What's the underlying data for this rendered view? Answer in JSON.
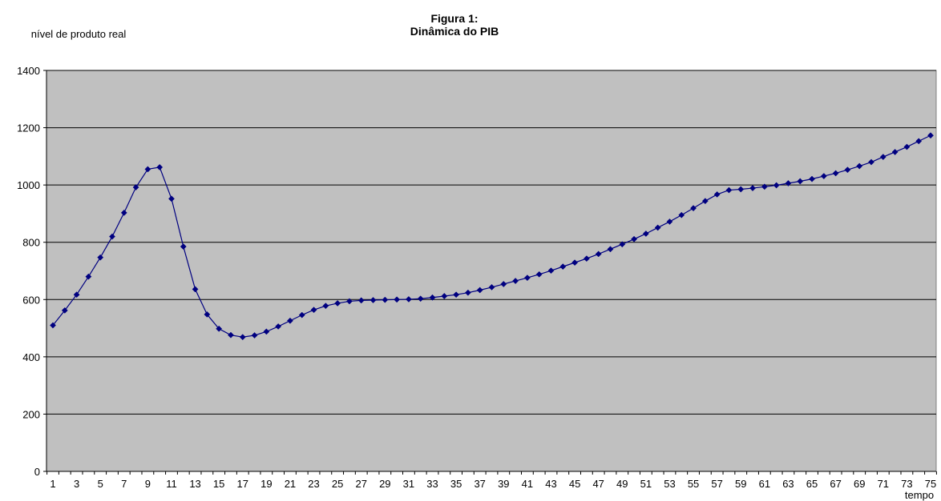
{
  "chart_data": {
    "type": "line",
    "title": "Figura 1:",
    "subtitle": "Dinâmica do PIB",
    "xlabel": "tempo",
    "ylabel": "nível de produto real",
    "ylim": [
      0,
      1400
    ],
    "yticks": [
      0,
      200,
      400,
      600,
      800,
      1000,
      1200,
      1400
    ],
    "x": [
      1,
      2,
      3,
      4,
      5,
      6,
      7,
      8,
      9,
      10,
      11,
      12,
      13,
      14,
      15,
      16,
      17,
      18,
      19,
      20,
      21,
      22,
      23,
      24,
      25,
      26,
      27,
      28,
      29,
      30,
      31,
      32,
      33,
      34,
      35,
      36,
      37,
      38,
      39,
      40,
      41,
      42,
      43,
      44,
      45,
      46,
      47,
      48,
      49,
      50,
      51,
      52,
      53,
      54,
      55,
      56,
      57,
      58,
      59,
      60,
      61,
      62,
      63,
      64,
      65,
      66,
      67,
      68,
      69,
      70,
      71,
      72,
      73,
      74,
      75
    ],
    "xtick_labels": [
      "1",
      "3",
      "5",
      "7",
      "9",
      "11",
      "13",
      "15",
      "17",
      "19",
      "21",
      "23",
      "25",
      "27",
      "29",
      "31",
      "33",
      "35",
      "37",
      "39",
      "41",
      "43",
      "45",
      "47",
      "49",
      "51",
      "53",
      "55",
      "57",
      "59",
      "61",
      "63",
      "65",
      "67",
      "69",
      "71",
      "73",
      "75"
    ],
    "grid": "horizontal",
    "plot_background": "#c0c0c0",
    "series": [
      {
        "color": "#000080",
        "marker": "diamond",
        "values": [
          510,
          562,
          617,
          680,
          747,
          820,
          903,
          992,
          1055,
          1062,
          952,
          785,
          636,
          548,
          498,
          476,
          469,
          475,
          488,
          506,
          526,
          546,
          564,
          578,
          587,
          594,
          597,
          598,
          599,
          600,
          601,
          603,
          607,
          612,
          617,
          624,
          633,
          643,
          654,
          665,
          676,
          688,
          701,
          715,
          729,
          743,
          759,
          776,
          793,
          811,
          830,
          851,
          872,
          895,
          919,
          944,
          967,
          982,
          985,
          989,
          994,
          999,
          1006,
          1013,
          1021,
          1031,
          1041,
          1053,
          1066,
          1080,
          1098,
          1115,
          1133,
          1153,
          1173
        ]
      }
    ]
  }
}
